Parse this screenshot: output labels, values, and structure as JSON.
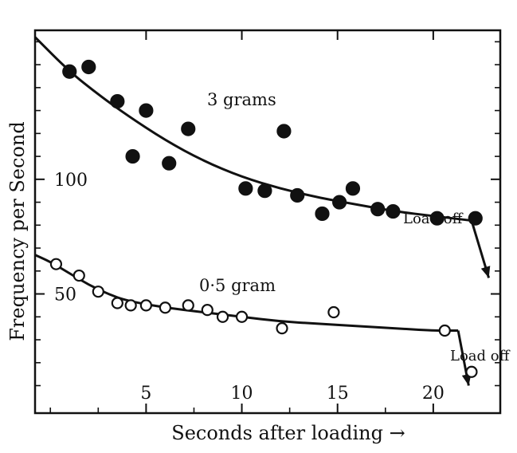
{
  "chart_data": {
    "type": "scatter",
    "xlabel": "Seconds after loading →",
    "ylabel": "Frequency per Second",
    "xlim": [
      -0.8,
      23.5
    ],
    "ylim": [
      -2,
      165
    ],
    "x_ticks": [
      5,
      10,
      15,
      20
    ],
    "y_ticks": [
      50,
      100
    ],
    "grid": false,
    "series": [
      {
        "name": "3 grams",
        "marker": "filled-circle",
        "points": [
          {
            "x": 1.0,
            "y": 147
          },
          {
            "x": 2.0,
            "y": 149
          },
          {
            "x": 3.5,
            "y": 134
          },
          {
            "x": 4.3,
            "y": 110
          },
          {
            "x": 5.0,
            "y": 130
          },
          {
            "x": 6.2,
            "y": 107
          },
          {
            "x": 7.2,
            "y": 122
          },
          {
            "x": 10.2,
            "y": 96
          },
          {
            "x": 11.2,
            "y": 95
          },
          {
            "x": 12.2,
            "y": 121
          },
          {
            "x": 12.9,
            "y": 93
          },
          {
            "x": 14.2,
            "y": 85
          },
          {
            "x": 15.1,
            "y": 90
          },
          {
            "x": 15.8,
            "y": 96
          },
          {
            "x": 17.1,
            "y": 87
          },
          {
            "x": 17.9,
            "y": 86
          },
          {
            "x": 20.2,
            "y": 83
          },
          {
            "x": 22.2,
            "y": 83
          }
        ],
        "fit_curve": [
          {
            "x": -0.8,
            "y": 162
          },
          {
            "x": 1,
            "y": 147
          },
          {
            "x": 2.5,
            "y": 137
          },
          {
            "x": 4,
            "y": 128
          },
          {
            "x": 6,
            "y": 117
          },
          {
            "x": 8,
            "y": 108
          },
          {
            "x": 10,
            "y": 101
          },
          {
            "x": 12,
            "y": 96
          },
          {
            "x": 14,
            "y": 92
          },
          {
            "x": 16,
            "y": 89
          },
          {
            "x": 18,
            "y": 86
          },
          {
            "x": 20,
            "y": 84
          },
          {
            "x": 22,
            "y": 82
          }
        ],
        "load_off_line": [
          {
            "x": 22,
            "y": 82
          },
          {
            "x": 22.9,
            "y": 57
          }
        ],
        "annotation": "Load off"
      },
      {
        "name": "0·5 gram",
        "marker": "open-circle",
        "points": [
          {
            "x": 0.3,
            "y": 63
          },
          {
            "x": 1.5,
            "y": 58
          },
          {
            "x": 2.5,
            "y": 51
          },
          {
            "x": 3.5,
            "y": 46
          },
          {
            "x": 4.2,
            "y": 45
          },
          {
            "x": 5.0,
            "y": 45
          },
          {
            "x": 6.0,
            "y": 44
          },
          {
            "x": 7.2,
            "y": 45
          },
          {
            "x": 8.2,
            "y": 43
          },
          {
            "x": 9.0,
            "y": 40
          },
          {
            "x": 10.0,
            "y": 40
          },
          {
            "x": 12.1,
            "y": 35
          },
          {
            "x": 14.8,
            "y": 42
          },
          {
            "x": 20.6,
            "y": 34
          },
          {
            "x": 22.0,
            "y": 16
          }
        ],
        "fit_curve": [
          {
            "x": -0.8,
            "y": 67
          },
          {
            "x": 0,
            "y": 64
          },
          {
            "x": 1,
            "y": 59
          },
          {
            "x": 2,
            "y": 54
          },
          {
            "x": 3,
            "y": 50
          },
          {
            "x": 4,
            "y": 47
          },
          {
            "x": 6,
            "y": 44
          },
          {
            "x": 8,
            "y": 42
          },
          {
            "x": 10,
            "y": 40
          },
          {
            "x": 12,
            "y": 38
          },
          {
            "x": 14,
            "y": 37
          },
          {
            "x": 16,
            "y": 36
          },
          {
            "x": 18,
            "y": 35
          },
          {
            "x": 20,
            "y": 34
          },
          {
            "x": 21.3,
            "y": 34
          }
        ],
        "load_off_line": [
          {
            "x": 21.3,
            "y": 34
          },
          {
            "x": 21.85,
            "y": 10
          }
        ],
        "annotation": "Load off"
      }
    ]
  }
}
